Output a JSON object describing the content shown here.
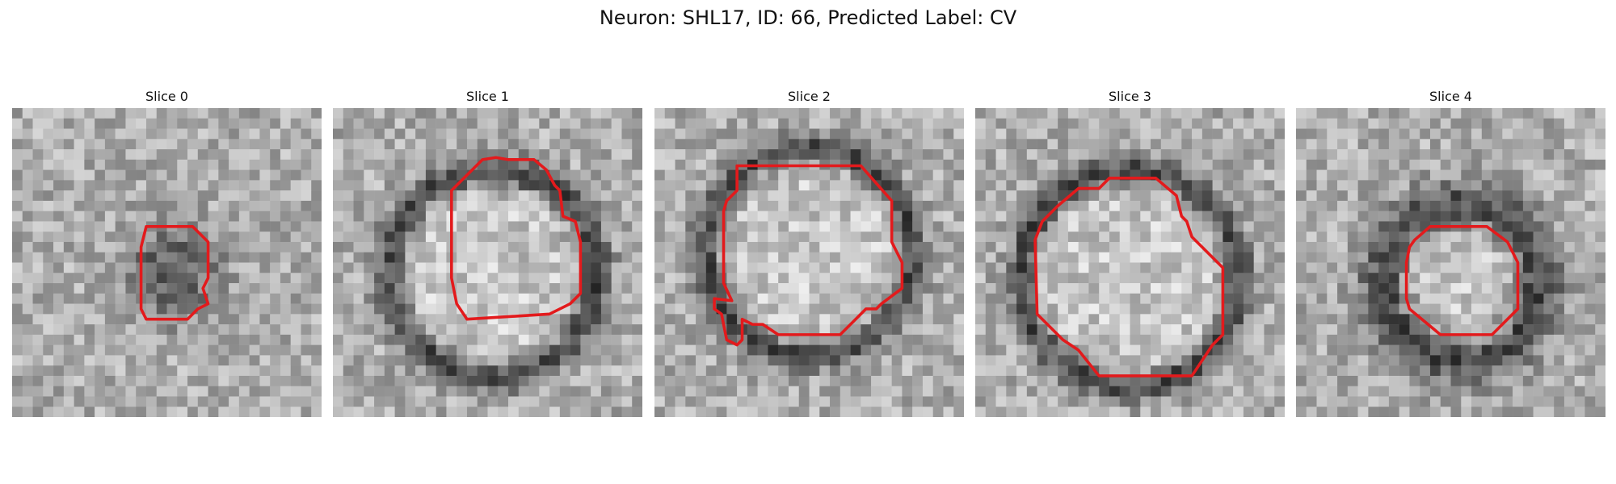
{
  "title": "Neuron: SHL17, ID: 66, Predicted Label: CV",
  "contour_color": "#e31a1c",
  "colormap": "grayscale",
  "panels": [
    {
      "label": "Slice 0",
      "seed": 11,
      "blob": "dark"
    },
    {
      "label": "Slice 1",
      "seed": 23,
      "blob": "ring"
    },
    {
      "label": "Slice 2",
      "seed": 37,
      "blob": "ring"
    },
    {
      "label": "Slice 3",
      "seed": 41,
      "blob": "ring"
    },
    {
      "label": "Slice 4",
      "seed": 53,
      "blob": "ring"
    }
  ]
}
